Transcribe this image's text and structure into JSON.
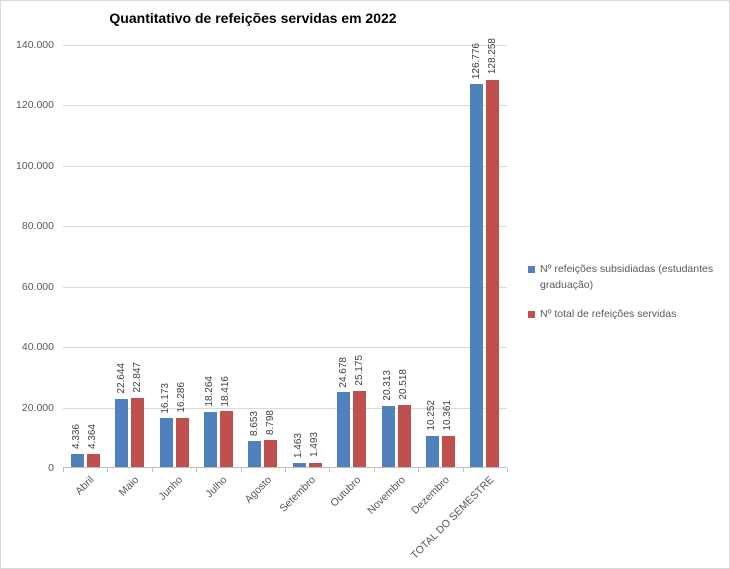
{
  "chart_data": {
    "type": "bar",
    "title": "Quantitativo de refeições servidas em 2022",
    "categories": [
      "Abril",
      "Maio",
      "Junho",
      "Julho",
      "Agosto",
      "Setembro",
      "Outubro",
      "Novembro",
      "Dezembro",
      "TOTAL DO SEMESTRE"
    ],
    "series": [
      {
        "name": "Nº refeições subsidiadas (estudantes graduação)",
        "color": "#4F81BD",
        "values": [
          4336,
          22644,
          16173,
          18264,
          8653,
          1463,
          24678,
          20313,
          10252,
          126776
        ]
      },
      {
        "name": "Nº total de refeições servidas",
        "color": "#C0504D",
        "values": [
          4364,
          22847,
          16286,
          18416,
          8798,
          1493,
          25175,
          20518,
          10361,
          128258
        ]
      }
    ],
    "ylim": [
      0,
      140000
    ],
    "y_tick_step": 20000,
    "y_tick_labels": [
      "0",
      "20.000",
      "40.000",
      "60.000",
      "80.000",
      "100.000",
      "120.000",
      "140.000"
    ],
    "thousands_separator": ".",
    "grid": true,
    "legend_position": "right",
    "data_labels": true,
    "data_labels_rotation": 90,
    "category_labels_rotation": 45
  },
  "style_colors": {
    "background": "#FFFFFF",
    "border": "#D9D9D9",
    "gridline": "#D9D9D9",
    "axis": "#BFBFBF",
    "tick_label_text": "#595959",
    "data_label_text": "#404040",
    "title_text": "#000000"
  }
}
